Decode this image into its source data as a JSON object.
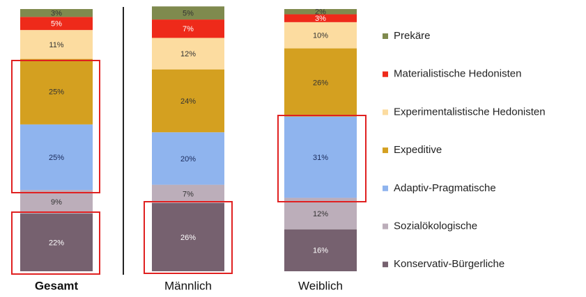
{
  "chart_data": {
    "type": "stacked_bar",
    "categories": [
      "Gesamt",
      "Männlich",
      "Weiblich"
    ],
    "series": [
      {
        "name": "Prekäre",
        "color": "#7f8a4e",
        "label_color": "#333333",
        "values": [
          3,
          5,
          2
        ],
        "value_labels": [
          "3%",
          "5%",
          "2%"
        ]
      },
      {
        "name": "Materialistische Hedonisten",
        "color": "#ee2a1a",
        "label_color": "#ffffff",
        "values": [
          5,
          7,
          3
        ],
        "value_labels": [
          "5%",
          "7%",
          "3%"
        ]
      },
      {
        "name": "Experimentalistische Hedonisten",
        "color": "#fcdca0",
        "label_color": "#333333",
        "values": [
          11,
          12,
          10
        ],
        "value_labels": [
          "11%",
          "12%",
          "10%"
        ]
      },
      {
        "name": "Expeditive",
        "color": "#d4a020",
        "label_color": "#333333",
        "values": [
          25,
          24,
          26
        ],
        "value_labels": [
          "25%",
          "24%",
          "26%"
        ]
      },
      {
        "name": "Adaptiv-Pragmatische",
        "color": "#8fb4ee",
        "label_color": "#1a2a5a",
        "values": [
          25,
          20,
          31
        ],
        "value_labels": [
          "25%",
          "20%",
          "31%"
        ]
      },
      {
        "name": "Sozialökologische",
        "color": "#bcaeba",
        "label_color": "#333333",
        "values": [
          9,
          7,
          12
        ],
        "value_labels": [
          "9%",
          "7%",
          "12%"
        ]
      },
      {
        "name": "Konservativ-Bürgerliche",
        "color": "#76616f",
        "label_color": "#ffffff",
        "values": [
          22,
          26,
          16
        ],
        "value_labels": [
          "22%",
          "26%",
          "16%"
        ]
      }
    ]
  }
}
